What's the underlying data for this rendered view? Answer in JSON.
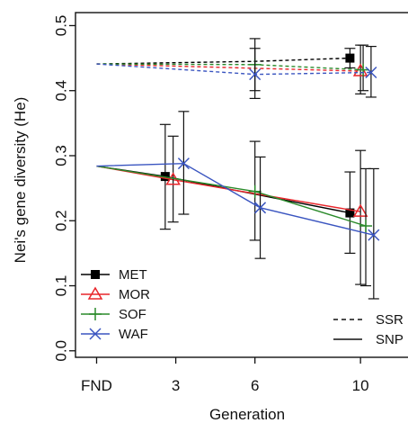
{
  "chart_data": {
    "type": "line",
    "title": "",
    "xlabel": "Generation",
    "ylabel": "Nei's gene diversity (He)",
    "x_categories": [
      "FND",
      "3",
      "6",
      "10"
    ],
    "x_positions": [
      0,
      3,
      6,
      10
    ],
    "ylim": [
      -0.01,
      0.52
    ],
    "yticks": [
      0.0,
      0.1,
      0.2,
      0.3,
      0.4,
      0.5
    ],
    "ytick_labels": [
      "0.0",
      "0.1",
      "0.2",
      "0.3",
      "0.4",
      "0.5"
    ],
    "grid": false,
    "legend": {
      "placement": "bottom-left",
      "populations": [
        {
          "name": "MET",
          "color": "#000000",
          "marker": "square"
        },
        {
          "name": "MOR",
          "color": "#e8262b",
          "marker": "triangle"
        },
        {
          "name": "SOF",
          "color": "#2a8a2a",
          "marker": "plus"
        },
        {
          "name": "WAF",
          "color": "#3a55c0",
          "marker": "cross"
        }
      ],
      "markers": [
        {
          "name": "SSR",
          "style": "dashed"
        },
        {
          "name": "SNP",
          "style": "solid"
        }
      ]
    },
    "series": [
      {
        "population": "MET",
        "marker_type": "SSR",
        "color": "#000000",
        "marker": "square",
        "points": [
          {
            "x": 0,
            "y": 0.441
          },
          {
            "x": 6,
            "y": 0.445,
            "err": null
          },
          {
            "x": 9.6,
            "y": 0.45,
            "err": [
              0.435,
              0.465
            ]
          }
        ]
      },
      {
        "population": "MOR",
        "marker_type": "SSR",
        "color": "#e8262b",
        "marker": "triangle",
        "points": [
          {
            "x": 0,
            "y": 0.441
          },
          {
            "x": 10,
            "y": 0.43,
            "err": [
              0.395,
              0.47
            ]
          }
        ]
      },
      {
        "population": "SOF",
        "marker_type": "SSR",
        "color": "#2a8a2a",
        "marker": "plus",
        "points": [
          {
            "x": 0,
            "y": 0.441
          },
          {
            "x": 6,
            "y": 0.44,
            "err": [
              0.4,
              0.48
            ]
          },
          {
            "x": 10.1,
            "y": 0.432,
            "err": [
              0.4,
              0.47
            ]
          }
        ]
      },
      {
        "population": "WAF",
        "marker_type": "SSR",
        "color": "#3a55c0",
        "marker": "cross",
        "points": [
          {
            "x": 0,
            "y": 0.441
          },
          {
            "x": 6,
            "y": 0.425,
            "err": [
              0.388,
              0.465
            ]
          },
          {
            "x": 10.4,
            "y": 0.428,
            "err": [
              0.39,
              0.468
            ]
          }
        ]
      },
      {
        "population": "MET",
        "marker_type": "SNP",
        "color": "#000000",
        "marker": "square",
        "points": [
          {
            "x": 0,
            "y": 0.284
          },
          {
            "x": 2.6,
            "y": 0.268,
            "err": [
              0.187,
              0.348
            ]
          },
          {
            "x": 9.6,
            "y": 0.212,
            "err": [
              0.15,
              0.275
            ]
          }
        ]
      },
      {
        "population": "MOR",
        "marker_type": "SNP",
        "color": "#e8262b",
        "marker": "triangle",
        "points": [
          {
            "x": 0,
            "y": 0.284
          },
          {
            "x": 2.9,
            "y": 0.263,
            "err": [
              0.198,
              0.33
            ]
          },
          {
            "x": 10,
            "y": 0.214,
            "err": [
              0.102,
              0.308
            ]
          }
        ]
      },
      {
        "population": "SOF",
        "marker_type": "SNP",
        "color": "#2a8a2a",
        "marker": "plus",
        "points": [
          {
            "x": 0,
            "y": 0.284
          },
          {
            "x": 6,
            "y": 0.245,
            "err": [
              0.17,
              0.322
            ]
          },
          {
            "x": 10.2,
            "y": 0.192,
            "err": [
              0.1,
              0.28
            ]
          }
        ]
      },
      {
        "population": "WAF",
        "marker_type": "SNP",
        "color": "#3a55c0",
        "marker": "cross",
        "points": [
          {
            "x": 0,
            "y": 0.284
          },
          {
            "x": 3.3,
            "y": 0.288,
            "err": [
              0.21,
              0.368
            ]
          },
          {
            "x": 6.2,
            "y": 0.22,
            "err": [
              0.142,
              0.298
            ]
          },
          {
            "x": 10.5,
            "y": 0.178,
            "err": [
              0.08,
              0.28
            ]
          }
        ]
      }
    ]
  }
}
